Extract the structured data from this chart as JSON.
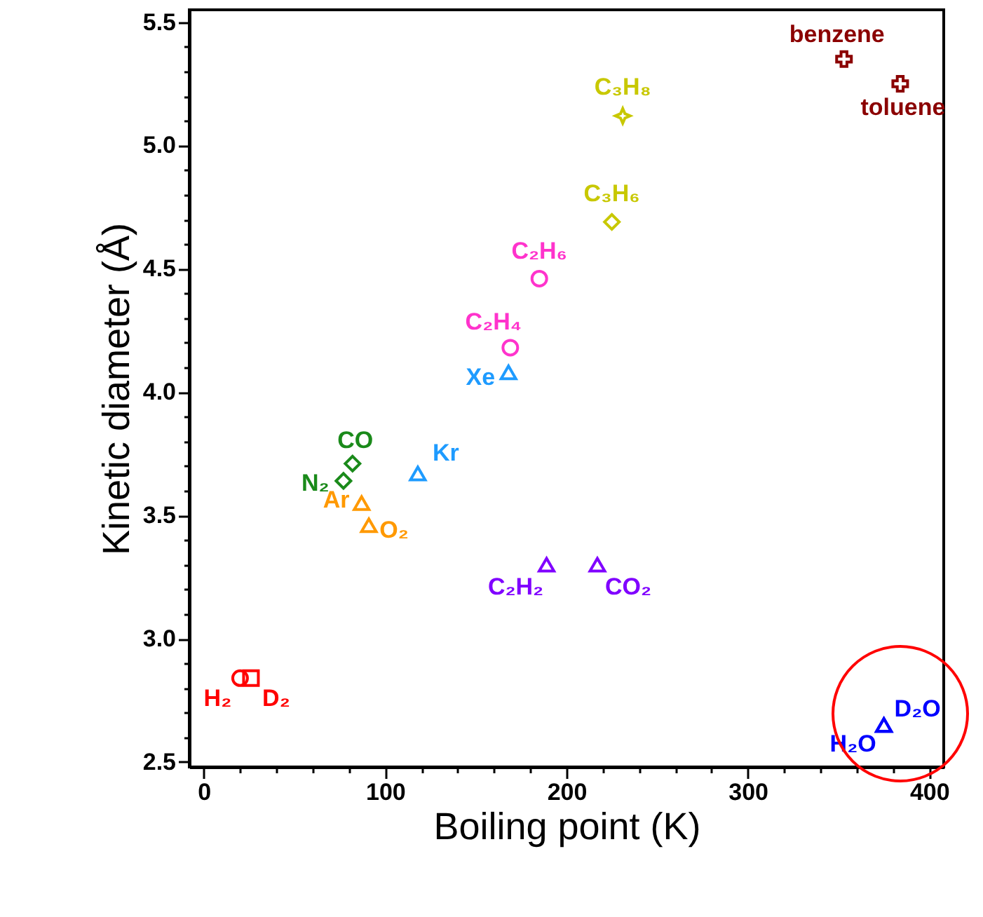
{
  "chart_data": {
    "type": "scatter",
    "xlabel": "Boiling point (K)",
    "ylabel": "Kinetic diameter (Å)",
    "xlim": [
      -8,
      408
    ],
    "ylim": [
      2.48,
      5.55
    ],
    "xticks": [
      0,
      {
        "value": 20,
        "label": null
      },
      {
        "value": 40,
        "label": null
      },
      {
        "value": 60,
        "label": null
      },
      {
        "value": 80,
        "label": null
      },
      100,
      {
        "value": 120,
        "label": null
      },
      {
        "value": 140,
        "label": null
      },
      {
        "value": 160,
        "label": null
      },
      {
        "value": 180,
        "label": null
      },
      200,
      {
        "value": 220,
        "label": null
      },
      {
        "value": 240,
        "label": null
      },
      {
        "value": 260,
        "label": null
      },
      {
        "value": 280,
        "label": null
      },
      300,
      {
        "value": 320,
        "label": null
      },
      {
        "value": 340,
        "label": null
      },
      {
        "value": 360,
        "label": null
      },
      {
        "value": 380,
        "label": null
      },
      400
    ],
    "yticks": [
      2.5,
      {
        "value": 2.6,
        "label": null
      },
      {
        "value": 2.7,
        "label": null
      },
      {
        "value": 2.8,
        "label": null
      },
      {
        "value": 2.9,
        "label": null
      },
      {
        "value": 3,
        "label": "3.0"
      },
      {
        "value": 3.1,
        "label": null
      },
      {
        "value": 3.2,
        "label": null
      },
      {
        "value": 3.3,
        "label": null
      },
      {
        "value": 3.4,
        "label": null
      },
      3.5,
      {
        "value": 3.6,
        "label": null
      },
      {
        "value": 3.7,
        "label": null
      },
      {
        "value": 3.8,
        "label": null
      },
      {
        "value": 3.9,
        "label": null
      },
      {
        "value": 4,
        "label": "4.0"
      },
      {
        "value": 4.1,
        "label": null
      },
      {
        "value": 4.2,
        "label": null
      },
      {
        "value": 4.3,
        "label": null
      },
      {
        "value": 4.4,
        "label": null
      },
      4.5,
      {
        "value": 4.6,
        "label": null
      },
      {
        "value": 4.7,
        "label": null
      },
      {
        "value": 4.8,
        "label": null
      },
      {
        "value": 4.9,
        "label": null
      },
      {
        "value": 5,
        "label": "5.0"
      },
      {
        "value": 5.1,
        "label": null
      },
      {
        "value": 5.2,
        "label": null
      },
      {
        "value": 5.3,
        "label": null
      },
      {
        "value": 5.4,
        "label": null
      },
      5.5
    ],
    "grid": false,
    "series": [
      {
        "name": "benzene",
        "color": "#8b0000",
        "marker": "cross",
        "x": [
          353
        ],
        "values": [
          5.35
        ]
      },
      {
        "name": "toluene",
        "color": "#8b0000",
        "marker": "cross",
        "x": [
          384
        ],
        "values": [
          5.25
        ]
      },
      {
        "name": "C₃H₈",
        "color": "#c8c800",
        "marker": "star",
        "x": [
          231
        ],
        "values": [
          5.12
        ]
      },
      {
        "name": "C₃H₆",
        "color": "#c8c800",
        "marker": "diamond",
        "x": [
          225
        ],
        "values": [
          4.69
        ]
      },
      {
        "name": "C₂H₆",
        "color": "#ff33cc",
        "marker": "circle",
        "x": [
          185
        ],
        "values": [
          4.46
        ]
      },
      {
        "name": "C₂H₄",
        "color": "#ff33cc",
        "marker": "circle",
        "x": [
          169
        ],
        "values": [
          4.18
        ]
      },
      {
        "name": "Xe",
        "color": "#1e9bff",
        "marker": "triangle",
        "x": [
          168
        ],
        "values": [
          4.08
        ]
      },
      {
        "name": "Kr",
        "color": "#1e9bff",
        "marker": "triangle",
        "x": [
          118
        ],
        "values": [
          3.67
        ]
      },
      {
        "name": "CO",
        "color": "#1a8a1a",
        "marker": "diamond",
        "x": [
          82
        ],
        "values": [
          3.71
        ]
      },
      {
        "name": "N₂",
        "color": "#1a8a1a",
        "marker": "diamond",
        "x": [
          77
        ],
        "values": [
          3.64
        ]
      },
      {
        "name": "Ar",
        "color": "#ff9900",
        "marker": "triangle",
        "x": [
          87
        ],
        "values": [
          3.55
        ]
      },
      {
        "name": "O₂",
        "color": "#ff9900",
        "marker": "triangle",
        "x": [
          91
        ],
        "values": [
          3.46
        ]
      },
      {
        "name": "C₂H₂",
        "color": "#8000ff",
        "marker": "triangle",
        "x": [
          189
        ],
        "values": [
          3.3
        ]
      },
      {
        "name": "CO₂",
        "color": "#8000ff",
        "marker": "triangle",
        "x": [
          217
        ],
        "values": [
          3.3
        ]
      },
      {
        "name": "H₂",
        "color": "#ff0000",
        "marker": "circle",
        "x": [
          20
        ],
        "values": [
          2.84
        ]
      },
      {
        "name": "D₂",
        "color": "#ff0000",
        "marker": "square",
        "x": [
          26
        ],
        "values": [
          2.84
        ]
      },
      {
        "name": "H₂O",
        "color": "#0000ff",
        "marker": "triangle",
        "x": [
          375
        ],
        "values": [
          2.65
        ]
      },
      {
        "name": "D₂O",
        "color": "#0000ff",
        "marker": "triangle",
        "x": [
          375
        ],
        "values": [
          2.65
        ]
      }
    ]
  }
}
